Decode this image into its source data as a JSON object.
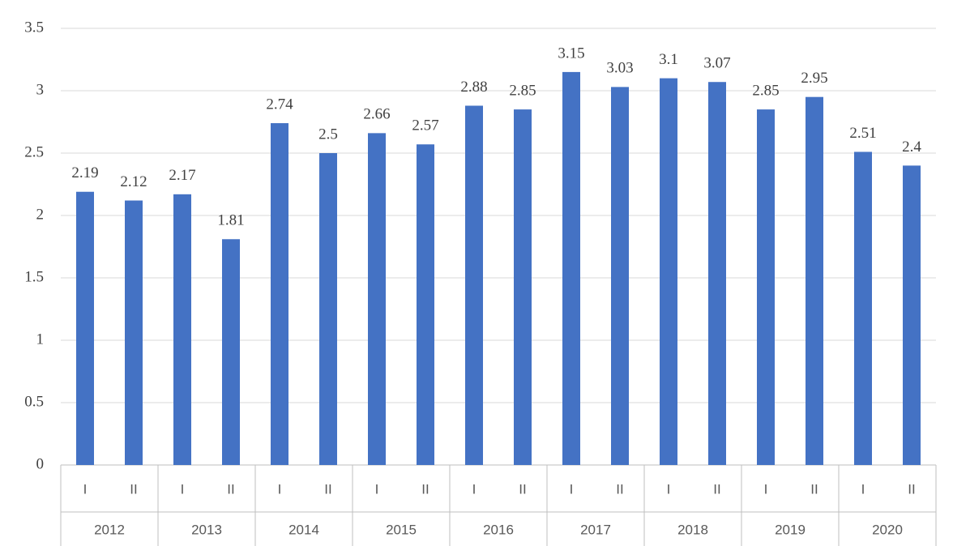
{
  "chart_data": {
    "type": "bar",
    "categories": [
      "I",
      "II",
      "I",
      "II",
      "I",
      "II",
      "I",
      "II",
      "I",
      "II",
      "I",
      "II",
      "I",
      "II",
      "I",
      "II",
      "I",
      "II"
    ],
    "groups": [
      "2012",
      "2013",
      "2014",
      "2015",
      "2016",
      "2017",
      "2018",
      "2019",
      "2020"
    ],
    "values": [
      2.19,
      2.12,
      2.17,
      1.81,
      2.74,
      2.5,
      2.66,
      2.57,
      2.88,
      2.85,
      3.15,
      3.03,
      3.1,
      3.07,
      2.85,
      2.95,
      2.51,
      2.4
    ],
    "color": "#4472c4",
    "ylim": [
      0,
      3.5
    ],
    "yticks": [
      0,
      0.5,
      1,
      1.5,
      2,
      2.5,
      3,
      3.5
    ],
    "grid": true
  }
}
